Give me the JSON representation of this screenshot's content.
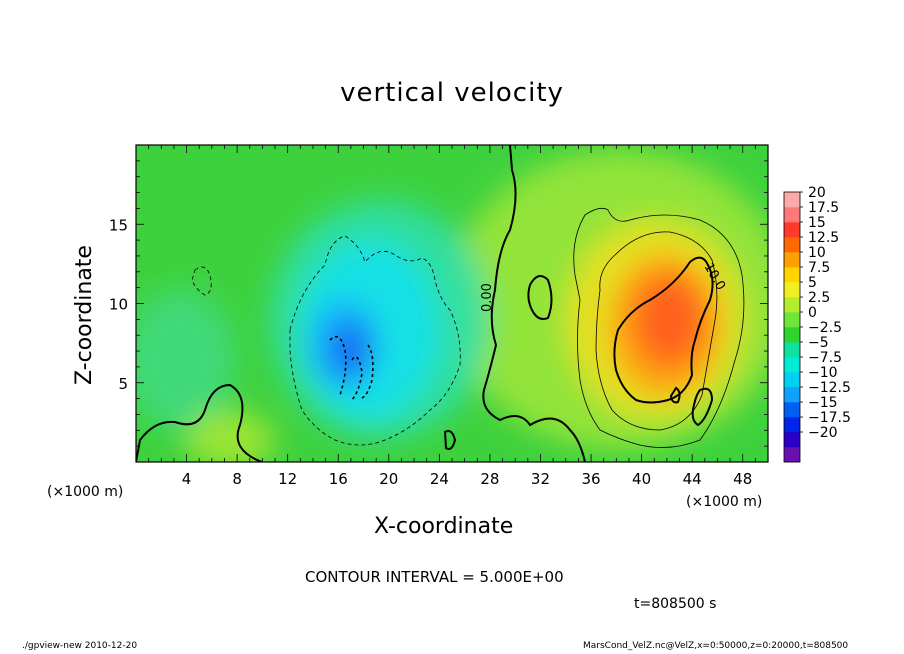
{
  "footer": {
    "left": "./gpview-new   2010-12-20",
    "right": "MarsCond_VelZ.nc@VelZ,x=0:50000,z=0:20000,t=808500"
  },
  "contour_interval": "CONTOUR INTERVAL = 5.000E+00",
  "time_label": "t=808500 s",
  "colors": {
    "background_field": "#3ed13e",
    "upwelling": "#e6543a",
    "downwelling": "#2f5ee8",
    "contour": "#000000"
  },
  "chart_data": {
    "type": "heatmap",
    "title": "vertical velocity",
    "xlabel": "X-coordinate",
    "ylabel": "Z-coordinate",
    "x_unit_left": "(×1000 m)",
    "x_unit_right": "(×1000 m)",
    "xlim": [
      0,
      50
    ],
    "ylim": [
      0,
      20
    ],
    "x_ticks": [
      4,
      8,
      12,
      16,
      20,
      24,
      28,
      32,
      36,
      40,
      44,
      48
    ],
    "y_ticks": [
      5,
      10,
      15
    ],
    "colorbar": {
      "levels": [
        -20,
        -17.5,
        -15,
        -12.5,
        -10,
        -7.5,
        -5,
        -2.5,
        0,
        2.5,
        5,
        7.5,
        10,
        12.5,
        15,
        17.5,
        20
      ],
      "labels": [
        "20",
        "17.5",
        "15",
        "12.5",
        "10",
        "7.5",
        "5",
        "2.5",
        "0",
        "−2.5",
        "−5",
        "−7.5",
        "−10",
        "−12.5",
        "−15",
        "−17.5",
        "−20"
      ],
      "colors": [
        "#6a0fb0",
        "#2a00c8",
        "#0024e8",
        "#0060f5",
        "#12a0ff",
        "#00d0f0",
        "#00ecd8",
        "#10e0a0",
        "#2fd42f",
        "#6ee63a",
        "#b4ec2c",
        "#f0f020",
        "#ffd400",
        "#ffa000",
        "#ff6a00",
        "#ff3a2a",
        "#ff7878",
        "#ffaaaa"
      ]
    },
    "contour_labels": [
      "0.00",
      "10.0"
    ],
    "features": [
      {
        "kind": "downdraft",
        "x_center": 18,
        "z_center": 8,
        "peak": -12
      },
      {
        "kind": "updraft",
        "x_center": 43,
        "z_center": 9,
        "peak": 13
      }
    ]
  }
}
